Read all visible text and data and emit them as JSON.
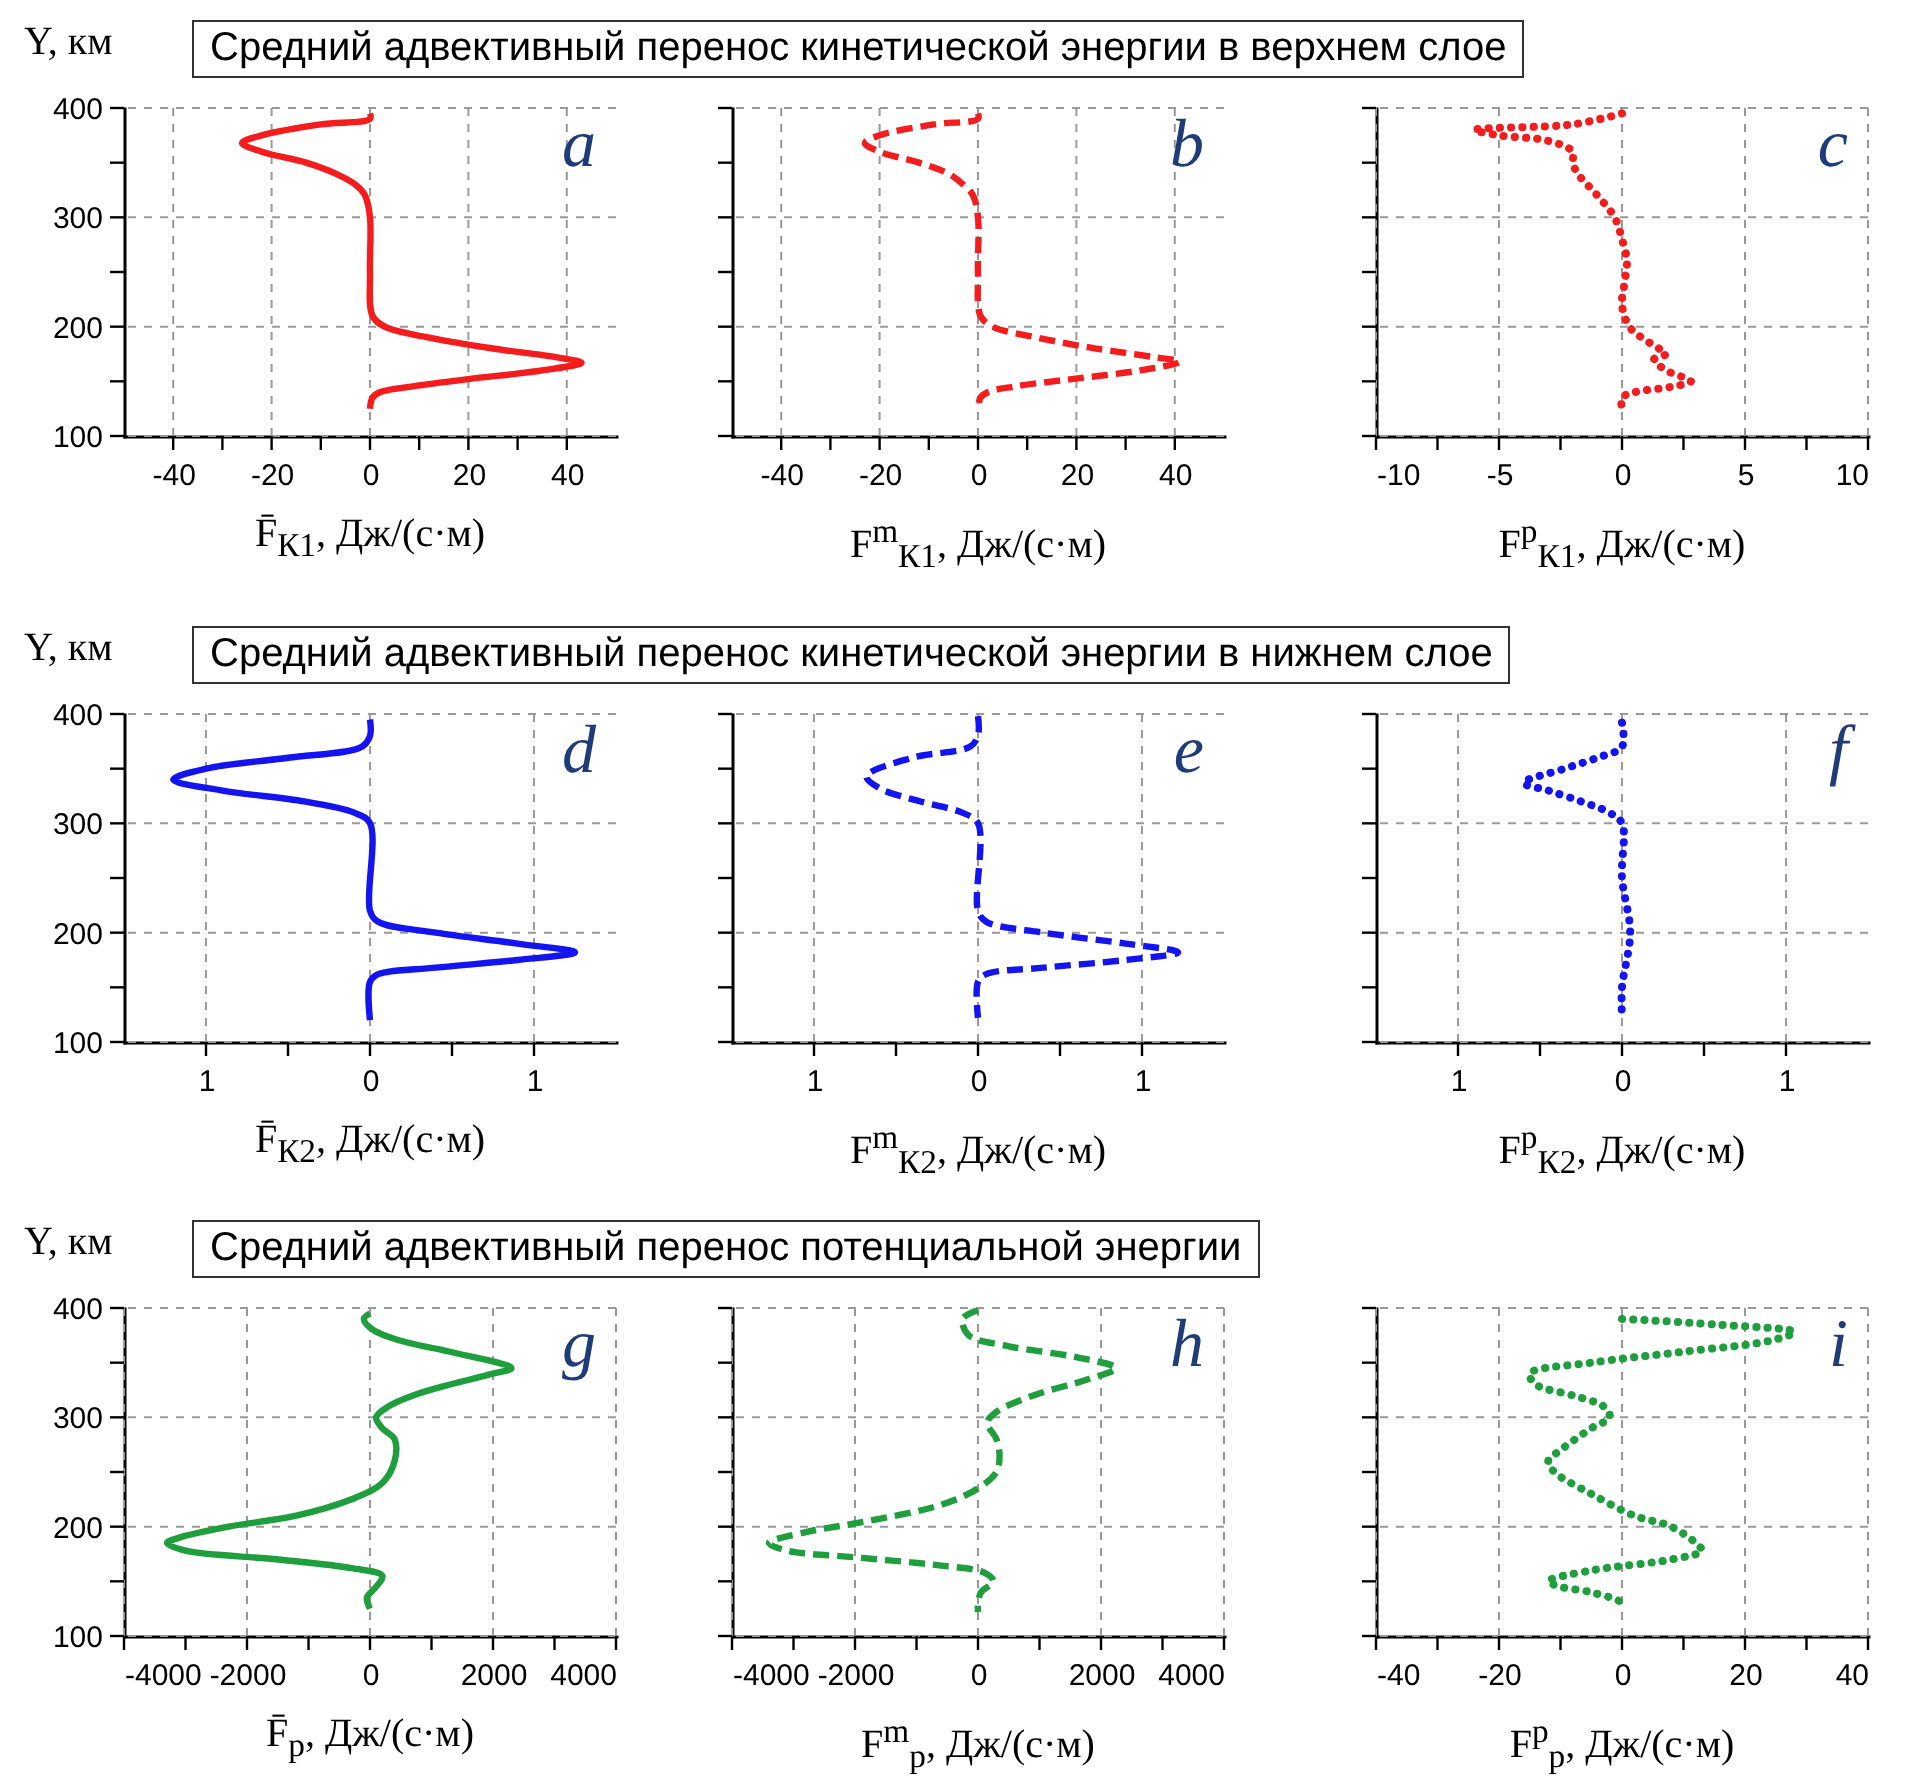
{
  "chart_data": [
    {
      "type": "line",
      "title": "Средний адвективный перенос кинетической энергии в верхнем слое",
      "ylabel": "Y, км",
      "xlabel": "F̄$_{К1}$,  Дж/(с·м)",
      "annotations": [
        "a"
      ],
      "line_style": "solid",
      "grid": true,
      "xlim": [
        -50,
        50
      ],
      "xticks": [
        -40,
        {
          "value": -30,
          "label": null
        },
        -20,
        {
          "value": -10,
          "label": null
        },
        0,
        {
          "value": 10,
          "label": null
        },
        20,
        {
          "value": 30,
          "label": null
        },
        40
      ],
      "ylim": [
        100,
        400
      ],
      "yticks": [
        100,
        {
          "value": 150,
          "label": null
        },
        200,
        {
          "value": 250,
          "label": null
        },
        300,
        {
          "value": 350,
          "label": null
        },
        400
      ],
      "series": [
        {
          "color": "#f41c1c",
          "x": [
            0,
            0,
            -10,
            -22,
            -26,
            -22,
            -13,
            -7,
            -3,
            -1,
            0,
            0,
            0.5,
            3,
            12,
            25,
            38,
            43,
            35,
            20,
            8,
            2,
            0.5,
            0
          ],
          "values": [
            395,
            390,
            385,
            375,
            368,
            360,
            350,
            340,
            330,
            320,
            300,
            250,
            210,
            200,
            190,
            180,
            172,
            167,
            160,
            152,
            145,
            140,
            135,
            125
          ]
        }
      ]
    },
    {
      "type": "line",
      "xlabel": "F$^{m}$$_{К1}$,  Дж/(с·м)",
      "annotations": [
        "b"
      ],
      "line_style": "dashed",
      "grid": true,
      "tick_labels": "x",
      "xlim": [
        -50,
        50
      ],
      "xticks": [
        -40,
        {
          "value": -30,
          "label": null
        },
        -20,
        {
          "value": -10,
          "label": null
        },
        0,
        {
          "value": 10,
          "label": null
        },
        20,
        {
          "value": 30,
          "label": null
        },
        40
      ],
      "ylim": [
        100,
        400
      ],
      "yticks": [
        100,
        {
          "value": 150,
          "label": null
        },
        200,
        {
          "value": 250,
          "label": null
        },
        300,
        {
          "value": 350,
          "label": null
        },
        400
      ],
      "series": [
        {
          "color": "#f41c1c",
          "x": [
            0,
            0,
            -9,
            -20,
            -23,
            -20,
            -12,
            -6,
            -3,
            -1,
            0,
            0,
            0.5,
            3,
            12,
            24,
            36,
            41,
            33,
            19,
            7,
            2,
            0.5,
            0
          ],
          "values": [
            395,
            390,
            385,
            375,
            368,
            360,
            350,
            340,
            330,
            320,
            300,
            250,
            210,
            200,
            190,
            180,
            172,
            168,
            160,
            152,
            145,
            140,
            135,
            125
          ]
        }
      ]
    },
    {
      "type": "line",
      "xlabel": "F$^{p}$$_{К1}$,  Дж/(с·м)",
      "annotations": [
        "c"
      ],
      "line_style": "dotted",
      "grid": true,
      "tick_labels": "x",
      "xlim": [
        -10,
        10
      ],
      "xticks": [
        -10,
        {
          "value": -7.5,
          "label": null
        },
        -5,
        {
          "value": -2.5,
          "label": null
        },
        0,
        {
          "value": 2.5,
          "label": null
        },
        5,
        {
          "value": 7.5,
          "label": null
        },
        10
      ],
      "ylim": [
        100,
        400
      ],
      "yticks": [
        100,
        {
          "value": 150,
          "label": null
        },
        200,
        {
          "value": 250,
          "label": null
        },
        300,
        {
          "value": 350,
          "label": null
        },
        400
      ],
      "series": [
        {
          "color": "#f41c1c",
          "x": [
            0,
            -2,
            -6,
            -5,
            -3,
            -2,
            -2,
            -1.8,
            -1,
            -0.3,
            0,
            0.2,
            0.1,
            0,
            0.3,
            0.8,
            1.5,
            1.8,
            1.3,
            1.8,
            2.8,
            2,
            0.5,
            0,
            0
          ],
          "values": [
            395,
            385,
            380,
            375,
            370,
            360,
            350,
            340,
            320,
            300,
            280,
            260,
            240,
            220,
            200,
            190,
            180,
            175,
            170,
            160,
            150,
            145,
            140,
            135,
            125
          ]
        }
      ]
    },
    {
      "type": "line",
      "title": "Средний адвективный перенос кинетической энергии в нижнем слое",
      "ylabel": "Y, км",
      "xlabel": "F̄$_{К2}$,  Дж/(с·м)",
      "annotations": [
        "d"
      ],
      "line_style": "solid",
      "grid": true,
      "xlim": [
        -1.5,
        1.5
      ],
      "xticks": [
        {
          "value": -1,
          "label": "1"
        },
        {
          "value": -0.5,
          "label": null
        },
        0,
        {
          "value": 0.5,
          "label": null
        },
        1
      ],
      "ylim": [
        100,
        400
      ],
      "yticks": [
        100,
        {
          "value": 150,
          "label": null
        },
        200,
        {
          "value": 250,
          "label": null
        },
        300,
        {
          "value": 350,
          "label": null
        },
        400
      ],
      "series": [
        {
          "color": "#1414f0",
          "x": [
            0,
            0,
            -0.05,
            -0.5,
            -1,
            -1.2,
            -0.9,
            -0.4,
            -0.1,
            0,
            0,
            0.05,
            0.4,
            0.9,
            1.25,
            0.9,
            0.4,
            0.05,
            0,
            0
          ],
          "values": [
            395,
            380,
            370,
            360,
            350,
            340,
            330,
            320,
            310,
            300,
            220,
            210,
            200,
            190,
            182,
            175,
            168,
            162,
            155,
            120
          ]
        }
      ]
    },
    {
      "type": "line",
      "xlabel": "F$^{m}$$_{К2}$,  Дж/(с·м)",
      "annotations": [
        "e"
      ],
      "line_style": "dashed",
      "grid": true,
      "tick_labels": "x",
      "xlim": [
        -1.5,
        1.5
      ],
      "xticks": [
        {
          "value": -1,
          "label": "1"
        },
        {
          "value": -0.5,
          "label": null
        },
        0,
        {
          "value": 0.5,
          "label": null
        },
        1
      ],
      "ylim": [
        100,
        400
      ],
      "yticks": [
        100,
        {
          "value": 150,
          "label": null
        },
        200,
        {
          "value": 250,
          "label": null
        },
        300,
        {
          "value": 350,
          "label": null
        },
        400
      ],
      "series": [
        {
          "color": "#1414f0",
          "x": [
            0,
            0,
            -0.05,
            -0.4,
            -0.68,
            -0.6,
            -0.35,
            -0.1,
            0,
            0,
            0.05,
            0.4,
            0.9,
            1.22,
            0.9,
            0.4,
            0.05,
            0,
            0
          ],
          "values": [
            398,
            380,
            370,
            360,
            343,
            332,
            320,
            310,
            300,
            220,
            210,
            200,
            190,
            182,
            175,
            168,
            162,
            155,
            122
          ]
        }
      ]
    },
    {
      "type": "line",
      "xlabel": "F$^{p}$$_{К2}$,  Дж/(с·м)",
      "annotations": [
        "f"
      ],
      "line_style": "dotted",
      "grid": true,
      "tick_labels": "x",
      "xlim": [
        -1.5,
        1.5
      ],
      "xticks": [
        {
          "value": -1,
          "label": "1"
        },
        {
          "value": -0.5,
          "label": null
        },
        0,
        {
          "value": 0.5,
          "label": null
        },
        1
      ],
      "ylim": [
        100,
        400
      ],
      "yticks": [
        100,
        {
          "value": 150,
          "label": null
        },
        200,
        {
          "value": 250,
          "label": null
        },
        300,
        {
          "value": 350,
          "label": null
        },
        400
      ],
      "series": [
        {
          "color": "#1414f0",
          "x": [
            0,
            0,
            -0.15,
            -0.35,
            -0.6,
            -0.45,
            -0.25,
            -0.08,
            0,
            0,
            0.05,
            0,
            0
          ],
          "values": [
            392,
            370,
            360,
            350,
            337,
            330,
            320,
            310,
            300,
            250,
            200,
            150,
            120
          ]
        }
      ]
    },
    {
      "type": "line",
      "title": "Средний адвективный перенос потенциальной энергии",
      "ylabel": "Y, км",
      "xlabel": "F̄$_{р}$,  Дж/(с·м)",
      "annotations": [
        "g"
      ],
      "line_style": "solid",
      "grid": true,
      "xlim": [
        -4000,
        4000
      ],
      "xticks": [
        -4000,
        {
          "value": -3000,
          "label": null
        },
        -2000,
        {
          "value": -1000,
          "label": null
        },
        0,
        {
          "value": 1000,
          "label": null
        },
        2000,
        {
          "value": 3000,
          "label": null
        },
        4000
      ],
      "ylim": [
        100,
        400
      ],
      "yticks": [
        100,
        {
          "value": 150,
          "label": null
        },
        200,
        {
          "value": 250,
          "label": null
        },
        300,
        {
          "value": 350,
          "label": null
        },
        400
      ],
      "series": [
        {
          "color": "#1e9e3c",
          "x": [
            0,
            -100,
            50,
            500,
            1300,
            2300,
            2000,
            1300,
            700,
            300,
            100,
            200,
            400,
            400,
            200,
            -300,
            -1200,
            -2300,
            -3100,
            -3300,
            -3000,
            -1500,
            -300,
            200,
            100,
            -50,
            0
          ],
          "values": [
            395,
            390,
            380,
            370,
            360,
            345,
            340,
            330,
            320,
            310,
            300,
            290,
            280,
            260,
            240,
            225,
            210,
            200,
            190,
            185,
            178,
            170,
            162,
            155,
            145,
            135,
            125
          ]
        }
      ]
    },
    {
      "type": "line",
      "xlabel": "F$^{m}$$_{р}$,  Дж/(с·м)",
      "annotations": [
        "h"
      ],
      "line_style": "dashed",
      "grid": true,
      "tick_labels": "x",
      "xlim": [
        -4000,
        4000
      ],
      "xticks": [
        -4000,
        {
          "value": -3000,
          "label": null
        },
        -2000,
        {
          "value": -1000,
          "label": null
        },
        0,
        {
          "value": 1000,
          "label": null
        },
        2000,
        {
          "value": 3000,
          "label": null
        },
        4000
      ],
      "ylim": [
        100,
        400
      ],
      "yticks": [
        100,
        {
          "value": 150,
          "label": null
        },
        200,
        {
          "value": 250,
          "label": null
        },
        300,
        {
          "value": 350,
          "label": null
        },
        400
      ],
      "series": [
        {
          "color": "#1e9e3c",
          "x": [
            0,
            -250,
            -150,
            500,
            1600,
            2240,
            1800,
            900,
            300,
            150,
            300,
            350,
            300,
            0,
            -600,
            -1800,
            -2800,
            -3400,
            -3100,
            -2000,
            -700,
            100,
            250,
            50,
            0,
            0
          ],
          "values": [
            398,
            390,
            375,
            365,
            355,
            345,
            335,
            320,
            305,
            295,
            280,
            265,
            250,
            235,
            220,
            205,
            195,
            185,
            178,
            172,
            165,
            158,
            150,
            140,
            130,
            122
          ]
        }
      ]
    },
    {
      "type": "line",
      "xlabel": "F$^{p}$$_{р}$,  Дж/(с·м)",
      "annotations": [
        "i"
      ],
      "line_style": "dotted",
      "grid": true,
      "tick_labels": "x",
      "xlim": [
        -40,
        40
      ],
      "xticks": [
        -40,
        {
          "value": -30,
          "label": null
        },
        -20,
        {
          "value": -10,
          "label": null
        },
        0,
        {
          "value": 10,
          "label": null
        },
        20,
        {
          "value": 30,
          "label": null
        },
        40
      ],
      "ylim": [
        100,
        400
      ],
      "yticks": [
        100,
        {
          "value": 150,
          "label": null
        },
        200,
        {
          "value": 250,
          "label": null
        },
        300,
        {
          "value": 350,
          "label": null
        },
        400
      ],
      "series": [
        {
          "color": "#1e9e3c",
          "x": [
            0,
            15,
            28,
            24,
            10,
            -5,
            -15,
            -14,
            -8,
            -3,
            -2,
            -5,
            -10,
            -12,
            -11,
            -5,
            2,
            8,
            12,
            13,
            8,
            -5,
            -12,
            -10,
            -5,
            0,
            0
          ],
          "values": [
            390,
            385,
            378,
            370,
            360,
            350,
            340,
            330,
            320,
            310,
            300,
            290,
            270,
            260,
            250,
            230,
            210,
            200,
            185,
            178,
            170,
            160,
            150,
            145,
            140,
            130,
            125
          ]
        }
      ]
    }
  ]
}
